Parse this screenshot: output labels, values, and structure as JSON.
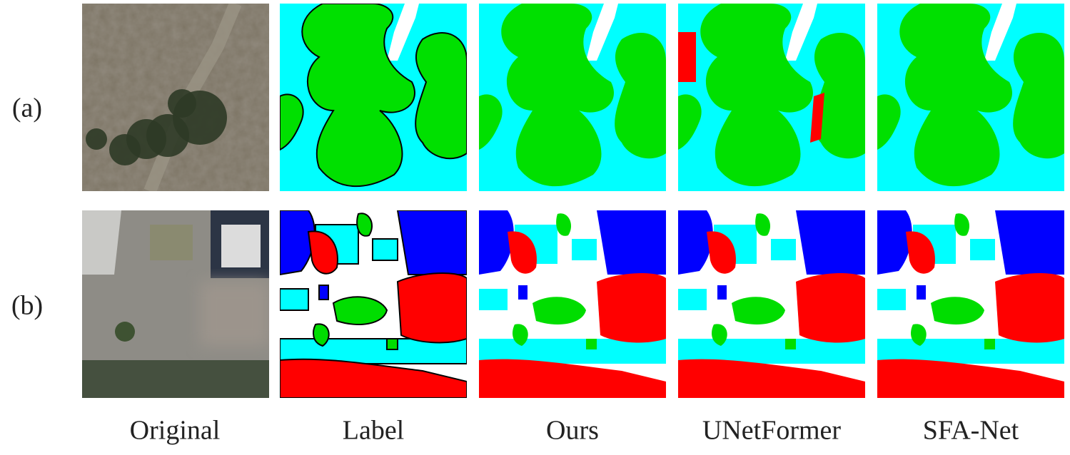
{
  "rows": [
    {
      "label": "(a)"
    },
    {
      "label": "(b)"
    }
  ],
  "columns": [
    "Original",
    "Label",
    "Ours",
    "UNetFormer",
    "SFA-Net"
  ]
}
